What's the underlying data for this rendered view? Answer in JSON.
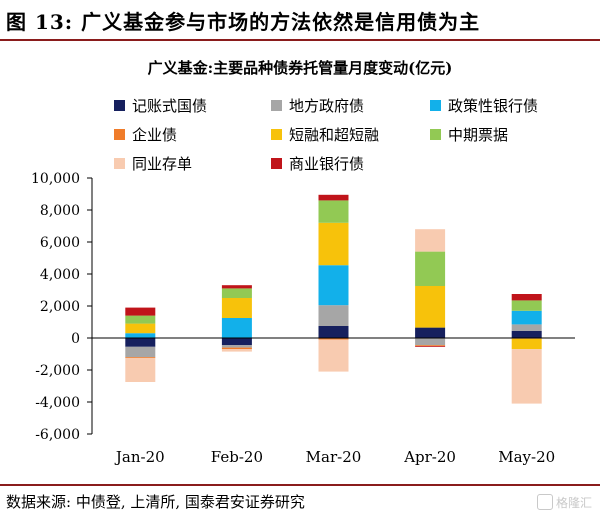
{
  "header": {
    "title": "图 13:  广义基金参与市场的方法依然是信用债为主"
  },
  "footer": {
    "source": "数据来源: 中债登, 上清所, 国泰君安证券研究",
    "watermark": "格隆汇"
  },
  "chart_data": {
    "type": "bar",
    "stacked": true,
    "title": "广义基金:主要品种债券托管量月度变动(亿元)",
    "xlabel": "",
    "ylabel": "",
    "ylim": [
      -6000,
      10000
    ],
    "yticks": [
      10000,
      8000,
      6000,
      4000,
      2000,
      0,
      -2000,
      -4000,
      -6000
    ],
    "ytick_labels": [
      "10,000",
      "8,000",
      "6,000",
      "4,000",
      "2,000",
      "0",
      "-2,000",
      "-4,000",
      "-6,000"
    ],
    "categories": [
      "Jan-20",
      "Feb-20",
      "Mar-20",
      "Apr-20",
      "May-20"
    ],
    "grid": false,
    "legend_position": "top",
    "series": [
      {
        "name": "记账式国债",
        "color": "#16205e",
        "values": [
          -550,
          -450,
          750,
          650,
          450
        ]
      },
      {
        "name": "地方政府债",
        "color": "#a6a6a6",
        "values": [
          -650,
          -150,
          1300,
          -450,
          400
        ]
      },
      {
        "name": "政策性银行债",
        "color": "#12b0ea",
        "values": [
          300,
          1250,
          2500,
          0,
          850
        ]
      },
      {
        "name": "企业债",
        "color": "#f07c2a",
        "values": [
          -50,
          -100,
          -100,
          -50,
          -50
        ]
      },
      {
        "name": "短融和超短融",
        "color": "#f7c20b",
        "values": [
          600,
          1250,
          2650,
          2600,
          -650
        ]
      },
      {
        "name": "中期票据",
        "color": "#92c954",
        "values": [
          500,
          600,
          1400,
          2150,
          650
        ]
      },
      {
        "name": "同业存单",
        "color": "#f8cbb0",
        "values": [
          -1500,
          -150,
          -2000,
          1400,
          -3400
        ]
      },
      {
        "name": "商业银行债",
        "color": "#c0141a",
        "values": [
          500,
          200,
          350,
          -50,
          400
        ]
      }
    ]
  }
}
